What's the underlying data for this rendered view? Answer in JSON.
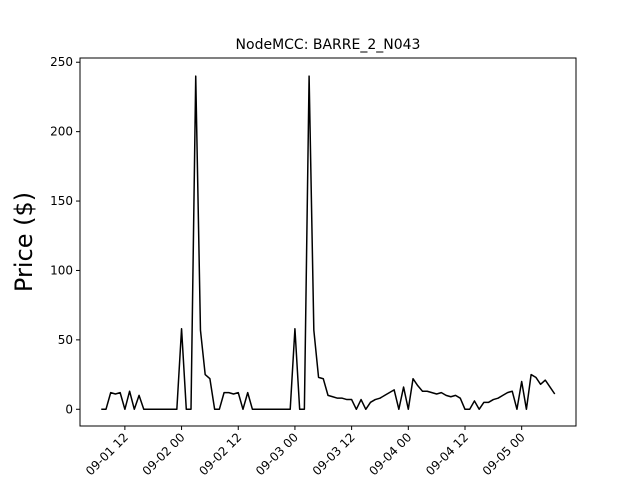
{
  "chart_data": {
    "type": "line",
    "title": "NodeMCC: BARRE_2_N043",
    "y_label": "Price ($)",
    "x": [
      "09-01 07",
      "09-01 08",
      "09-01 09",
      "09-01 10",
      "09-01 11",
      "09-01 12",
      "09-01 13",
      "09-01 14",
      "09-01 15",
      "09-01 16",
      "09-01 17",
      "09-01 18",
      "09-01 19",
      "09-01 20",
      "09-01 21",
      "09-01 22",
      "09-01 23",
      "09-02 00",
      "09-02 01",
      "09-02 02",
      "09-02 03",
      "09-02 04",
      "09-02 05",
      "09-02 06",
      "09-02 07",
      "09-02 08",
      "09-02 09",
      "09-02 10",
      "09-02 11",
      "09-02 12",
      "09-02 13",
      "09-02 14",
      "09-02 15",
      "09-02 16",
      "09-02 17",
      "09-02 18",
      "09-02 19",
      "09-02 20",
      "09-02 21",
      "09-02 22",
      "09-02 23",
      "09-03 00",
      "09-03 01",
      "09-03 02",
      "09-03 03",
      "09-03 04",
      "09-03 05",
      "09-03 06",
      "09-03 07",
      "09-03 08",
      "09-03 09",
      "09-03 10",
      "09-03 11",
      "09-03 12",
      "09-03 13",
      "09-03 14",
      "09-03 15",
      "09-03 16",
      "09-03 17",
      "09-03 18",
      "09-03 19",
      "09-03 20",
      "09-03 21",
      "09-03 22",
      "09-03 23",
      "09-04 00",
      "09-04 01",
      "09-04 02",
      "09-04 03",
      "09-04 04",
      "09-04 05",
      "09-04 06",
      "09-04 07",
      "09-04 08",
      "09-04 09",
      "09-04 10",
      "09-04 11",
      "09-04 12",
      "09-04 13",
      "09-04 14",
      "09-04 15",
      "09-04 16",
      "09-04 17",
      "09-04 18",
      "09-04 19",
      "09-04 20",
      "09-04 21",
      "09-04 22",
      "09-04 23",
      "09-05 00",
      "09-05 01",
      "09-05 02",
      "09-05 03",
      "09-05 04",
      "09-05 05",
      "09-05 06",
      "09-05 07"
    ],
    "series": [
      {
        "name": "Price",
        "color": "#000000",
        "values": [
          0,
          0,
          12,
          11,
          12,
          0,
          13,
          0,
          10,
          0,
          0,
          0,
          0,
          0,
          0,
          0,
          0,
          58,
          0,
          0,
          240,
          57,
          25,
          22,
          0,
          0,
          12,
          12,
          11,
          12,
          0,
          12,
          0,
          0,
          0,
          0,
          0,
          0,
          0,
          0,
          0,
          58,
          0,
          0,
          240,
          57,
          23,
          22,
          10,
          9,
          8,
          8,
          7,
          7,
          0,
          7,
          0,
          5,
          7,
          8,
          10,
          12,
          14,
          0,
          16,
          0,
          22,
          17,
          13,
          13,
          12,
          11,
          12,
          10,
          9,
          10,
          8,
          0,
          0,
          6,
          0,
          5,
          5,
          7,
          8,
          10,
          12,
          13,
          0,
          20,
          0,
          25,
          23,
          18,
          21,
          16,
          11
        ]
      }
    ],
    "xlim": [
      "09-01 02:30",
      "09-05 11:30"
    ],
    "xticks": [
      "09-01 12",
      "09-02 00",
      "09-02 12",
      "09-03 00",
      "09-03 12",
      "09-04 00",
      "09-04 12",
      "09-05 00"
    ],
    "ylim": [
      -12.05,
      253.05
    ],
    "yticks": [
      0,
      50,
      100,
      150,
      200,
      250
    ]
  }
}
